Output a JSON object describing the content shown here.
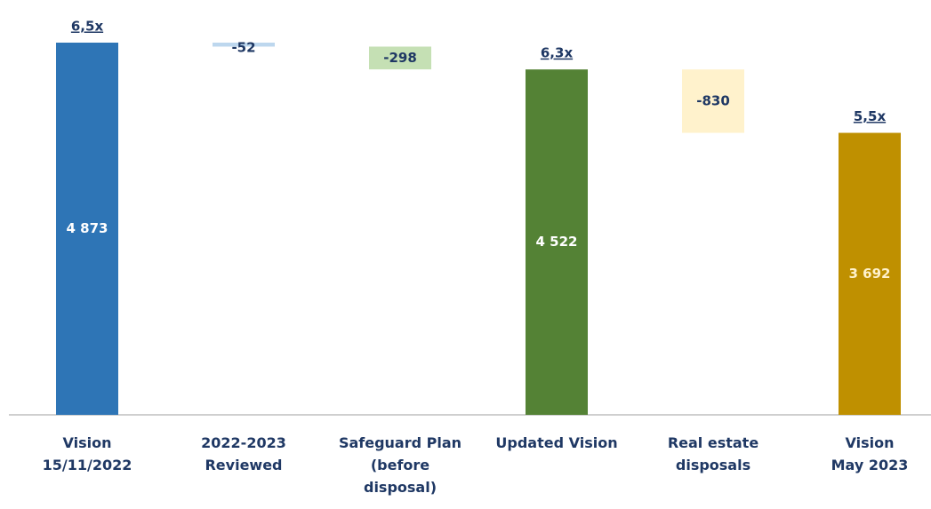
{
  "chart_data": {
    "type": "waterfall",
    "categories": [
      "Vision\n15/11/2022",
      "2022-2023\nReviewed",
      "Safeguard Plan\n(before\ndisposal)",
      "Updated Vision",
      "Real estate\ndisposals",
      "Vision\nMay 2023"
    ],
    "values": [
      4873,
      -52,
      -298,
      4522,
      -830,
      3692
    ],
    "value_labels": [
      "4 873",
      "-52",
      "-298",
      "4 522",
      "-830",
      "3 692"
    ],
    "multiples": [
      "6,5x",
      null,
      null,
      "6,3x",
      null,
      "5,5x"
    ],
    "colors": [
      "#2e75b6",
      "#bdd7ee",
      "#c5e0b4",
      "#548235",
      "#fff2cc",
      "#bf9000"
    ]
  }
}
